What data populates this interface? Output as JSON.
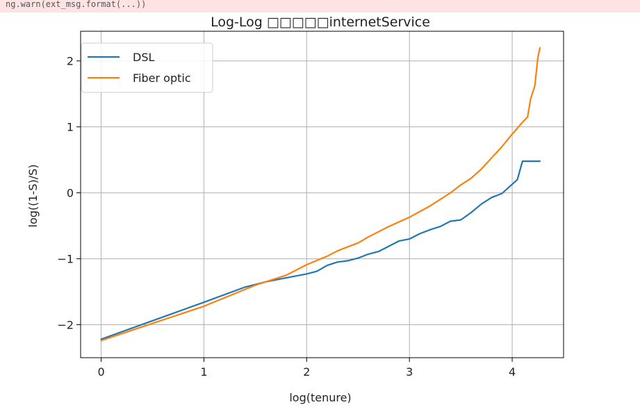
{
  "notice": {
    "text": "ng.warn(ext_msg.format(...))"
  },
  "colors": {
    "dsl": "#1f77b4",
    "fiber": "#ff7f0e",
    "grid": "#b0b0b0",
    "notice_bg": "#fde3e3"
  },
  "chart_data": {
    "type": "line",
    "title": "Log-Log □□□□□internetService",
    "xlabel": "log(tenure)",
    "ylabel": "log((1-S)/S)",
    "xlim": [
      -0.2,
      4.5
    ],
    "ylim": [
      -2.5,
      2.45
    ],
    "x_ticks": [
      0,
      1,
      2,
      3,
      4
    ],
    "y_ticks": [
      -2,
      -1,
      0,
      1,
      2
    ],
    "x_tick_labels": [
      "0",
      "1",
      "2",
      "3",
      "4"
    ],
    "y_tick_labels": [
      "−2",
      "−1",
      "0",
      "1",
      "2"
    ],
    "grid": true,
    "legend_position": "upper-left",
    "series": [
      {
        "name": "DSL",
        "color": "#1f77b4",
        "points": [
          [
            0,
            -2.22
          ],
          [
            0.5,
            -1.94
          ],
          [
            1.0,
            -1.66
          ],
          [
            1.4,
            -1.43
          ],
          [
            1.6,
            -1.35
          ],
          [
            1.8,
            -1.29
          ],
          [
            2.0,
            -1.23
          ],
          [
            2.1,
            -1.19
          ],
          [
            2.2,
            -1.1
          ],
          [
            2.3,
            -1.05
          ],
          [
            2.4,
            -1.03
          ],
          [
            2.5,
            -0.99
          ],
          [
            2.6,
            -0.93
          ],
          [
            2.7,
            -0.89
          ],
          [
            2.8,
            -0.81
          ],
          [
            2.9,
            -0.73
          ],
          [
            3.0,
            -0.7
          ],
          [
            3.1,
            -0.62
          ],
          [
            3.2,
            -0.56
          ],
          [
            3.3,
            -0.51
          ],
          [
            3.4,
            -0.43
          ],
          [
            3.5,
            -0.41
          ],
          [
            3.6,
            -0.3
          ],
          [
            3.7,
            -0.17
          ],
          [
            3.8,
            -0.07
          ],
          [
            3.9,
            -0.01
          ],
          [
            4.0,
            0.13
          ],
          [
            4.05,
            0.2
          ],
          [
            4.1,
            0.48
          ],
          [
            4.27,
            0.48
          ]
        ]
      },
      {
        "name": "Fiber optic",
        "color": "#ff7f0e",
        "points": [
          [
            0,
            -2.24
          ],
          [
            0.5,
            -1.98
          ],
          [
            1.0,
            -1.72
          ],
          [
            1.5,
            -1.4
          ],
          [
            1.6,
            -1.35
          ],
          [
            1.8,
            -1.25
          ],
          [
            2.0,
            -1.09
          ],
          [
            2.2,
            -0.96
          ],
          [
            2.3,
            -0.88
          ],
          [
            2.5,
            -0.76
          ],
          [
            2.6,
            -0.67
          ],
          [
            2.8,
            -0.51
          ],
          [
            3.0,
            -0.37
          ],
          [
            3.2,
            -0.2
          ],
          [
            3.3,
            -0.1
          ],
          [
            3.4,
            0.0
          ],
          [
            3.5,
            0.12
          ],
          [
            3.6,
            0.22
          ],
          [
            3.7,
            0.36
          ],
          [
            3.8,
            0.53
          ],
          [
            3.9,
            0.7
          ],
          [
            4.0,
            0.89
          ],
          [
            4.1,
            1.07
          ],
          [
            4.15,
            1.15
          ],
          [
            4.18,
            1.43
          ],
          [
            4.22,
            1.62
          ],
          [
            4.25,
            2.05
          ],
          [
            4.27,
            2.2
          ]
        ]
      }
    ]
  }
}
